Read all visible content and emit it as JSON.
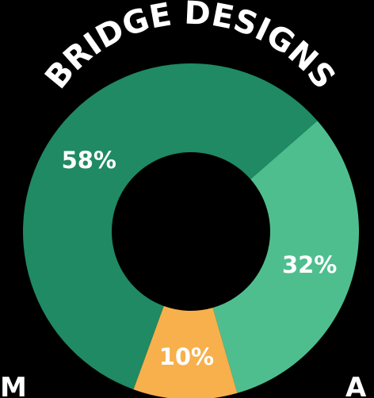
{
  "chart_data": {
    "type": "pie",
    "title": "BRIDGE DESIGNS",
    "donut": true,
    "slices": [
      {
        "label": "58%",
        "value": 58,
        "color": "#1f8a63"
      },
      {
        "label": "32%",
        "value": 32,
        "color": "#4fbe8f"
      },
      {
        "label": "10%",
        "value": 10,
        "color": "#f7b04c"
      }
    ],
    "bottom_text": {
      "left": "M",
      "right": "A"
    }
  }
}
